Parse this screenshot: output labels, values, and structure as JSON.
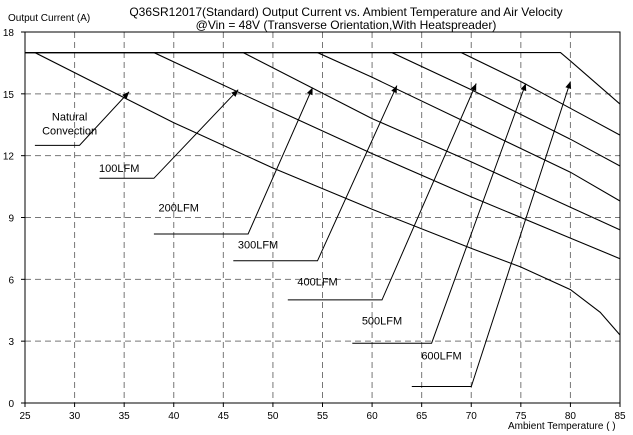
{
  "chart_data": {
    "type": "line",
    "title_line1": "Q36SR12017(Standard)  Output Current vs. Ambient Temperature and Air Velocity",
    "title_line2": "@Vin = 48V (Transverse Orientation,With Heatspreader)",
    "ylabel": "Output Current (A)",
    "xlabel": "Ambient Temperature (   )",
    "xlim": [
      25,
      85
    ],
    "ylim": [
      0,
      18
    ],
    "xticks": [
      25,
      30,
      35,
      40,
      45,
      50,
      55,
      60,
      65,
      70,
      75,
      80,
      85
    ],
    "yticks": [
      0,
      3,
      6,
      9,
      12,
      15,
      18
    ],
    "grid": true,
    "series": [
      {
        "name": "Natural\nConvection",
        "x": [
          25,
          26,
          40,
          50,
          60,
          70,
          75,
          80,
          83,
          85
        ],
        "y": [
          17,
          17,
          13.6,
          11.4,
          9.4,
          7.5,
          6.6,
          5.5,
          4.4,
          3.3
        ]
      },
      {
        "name": "100LFM",
        "x": [
          25,
          38,
          50,
          60,
          70,
          80,
          85
        ],
        "y": [
          17,
          17,
          14.3,
          12.1,
          10.0,
          8.0,
          7.0
        ]
      },
      {
        "name": "200LFM",
        "x": [
          25,
          47,
          60,
          70,
          80,
          85
        ],
        "y": [
          17,
          17,
          13.8,
          11.7,
          9.5,
          8.4
        ]
      },
      {
        "name": "300LFM",
        "x": [
          25,
          54.5,
          60,
          70,
          80,
          85
        ],
        "y": [
          17,
          17,
          15.8,
          13.5,
          11.2,
          9.8
        ]
      },
      {
        "name": "400LFM",
        "x": [
          25,
          62,
          70,
          80,
          85
        ],
        "y": [
          17,
          17,
          15.2,
          12.8,
          11.5
        ]
      },
      {
        "name": "500LFM",
        "x": [
          25,
          69,
          75,
          80,
          85
        ],
        "y": [
          17,
          17,
          15.6,
          14.3,
          13.0
        ]
      },
      {
        "name": "600LFM",
        "x": [
          25,
          79,
          80,
          85
        ],
        "y": [
          17,
          17,
          16.6,
          14.5
        ]
      }
    ],
    "annotations": [
      {
        "label": "Natural\nConvection",
        "text_at": [
          29.5,
          13.7
        ],
        "line": [
          [
            26,
            12.5
          ],
          [
            30.5,
            12.5
          ],
          [
            35.5,
            15.1
          ]
        ]
      },
      {
        "label": "100LFM",
        "text_at": [
          34.5,
          11.2
        ],
        "line": [
          [
            32.5,
            10.9
          ],
          [
            38,
            10.9
          ],
          [
            46.5,
            15.2
          ]
        ]
      },
      {
        "label": "200LFM",
        "text_at": [
          40.5,
          9.3
        ],
        "line": [
          [
            38,
            8.2
          ],
          [
            47.5,
            8.2
          ],
          [
            54,
            15.3
          ]
        ]
      },
      {
        "label": "300LFM",
        "text_at": [
          48.5,
          7.5
        ],
        "line": [
          [
            46,
            6.9
          ],
          [
            54.5,
            6.9
          ],
          [
            62.5,
            15.4
          ]
        ]
      },
      {
        "label": "400LFM",
        "text_at": [
          54.5,
          5.7
        ],
        "line": [
          [
            51.5,
            5.0
          ],
          [
            61,
            5.0
          ],
          [
            70.5,
            15.5
          ]
        ]
      },
      {
        "label": "500LFM",
        "text_at": [
          61,
          3.8
        ],
        "line": [
          [
            58,
            2.9
          ],
          [
            66,
            2.9
          ],
          [
            75.5,
            15.5
          ]
        ]
      },
      {
        "label": "600LFM",
        "text_at": [
          67,
          2.1
        ],
        "line": [
          [
            64,
            0.8
          ],
          [
            70,
            0.8
          ],
          [
            80,
            15.6
          ]
        ]
      }
    ]
  }
}
